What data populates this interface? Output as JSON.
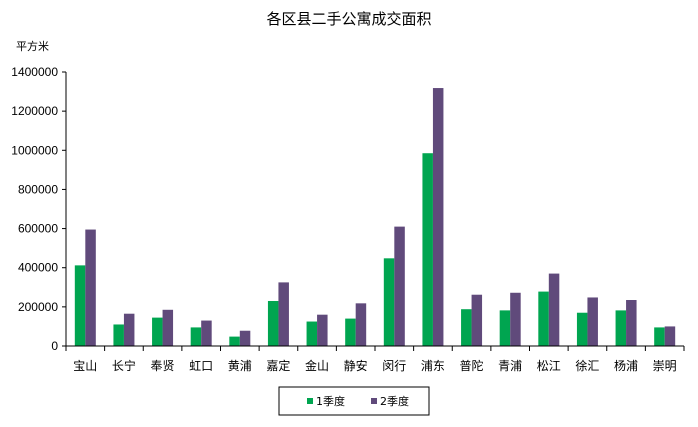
{
  "chart_data": {
    "type": "bar",
    "title": "各区县二手公寓成交面积",
    "ylabel": "平方米",
    "xlabel": "",
    "ylim": [
      0,
      1400000
    ],
    "yticks": [
      "0",
      "200000",
      "400000",
      "600000",
      "800000",
      "1000000",
      "1200000",
      "1400000"
    ],
    "grid": false,
    "legend_position": "bottom",
    "categories": [
      "宝山",
      "长宁",
      "奉贤",
      "虹口",
      "黄浦",
      "嘉定",
      "金山",
      "静安",
      "闵行",
      "浦东",
      "普陀",
      "青浦",
      "松江",
      "徐汇",
      "杨浦",
      "崇明"
    ],
    "series": [
      {
        "name": "1季度",
        "color": "#00A550",
        "values": [
          412000,
          110000,
          145000,
          95000,
          48000,
          230000,
          125000,
          140000,
          448000,
          985000,
          188000,
          182000,
          278000,
          170000,
          182000,
          95000
        ]
      },
      {
        "name": "2季度",
        "color": "#604A7B",
        "values": [
          595000,
          165000,
          185000,
          130000,
          78000,
          325000,
          160000,
          218000,
          610000,
          1318000,
          262000,
          272000,
          370000,
          248000,
          235000,
          100000
        ]
      }
    ]
  }
}
